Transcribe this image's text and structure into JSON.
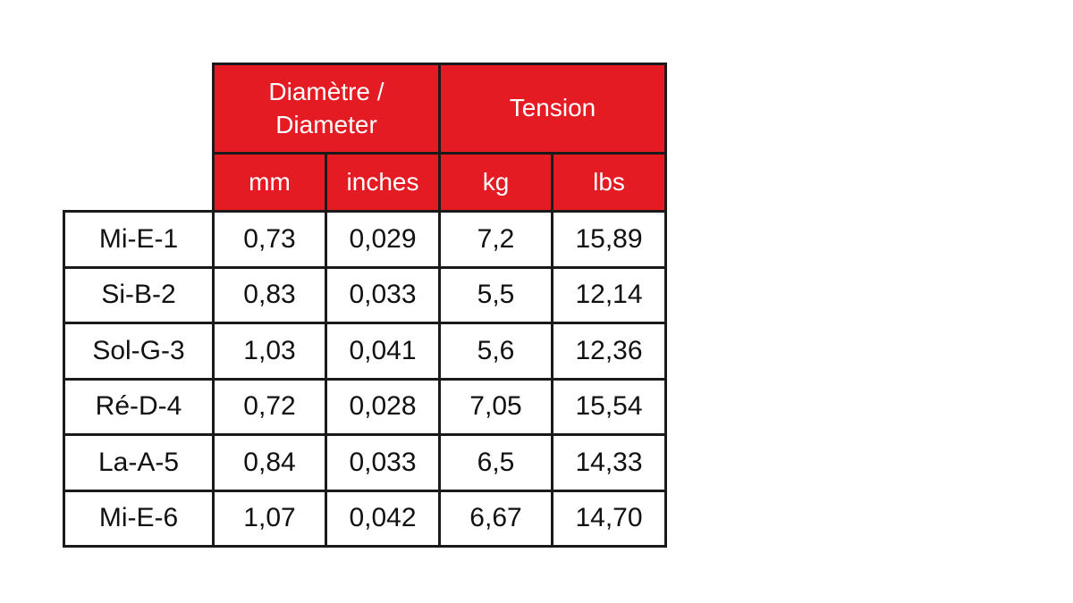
{
  "table": {
    "header": {
      "groups": [
        "Diamètre / Diameter",
        "Tension"
      ],
      "units": [
        "mm",
        "inches",
        "kg",
        "lbs"
      ]
    },
    "rows": [
      [
        "Mi-E-1",
        "0,73",
        "0,029",
        "7,2",
        "15,89"
      ],
      [
        "Si-B-2",
        "0,83",
        "0,033",
        "5,5",
        "12,14"
      ],
      [
        "Sol-G-3",
        "1,03",
        "0,041",
        "5,6",
        "12,36"
      ],
      [
        "Ré-D-4",
        "0,72",
        "0,028",
        "7,05",
        "15,54"
      ],
      [
        "La-A-5",
        "0,84",
        "0,033",
        "6,5",
        "14,33"
      ],
      [
        "Mi-E-6",
        "1,07",
        "0,042",
        "6,67",
        "14,70"
      ]
    ]
  }
}
